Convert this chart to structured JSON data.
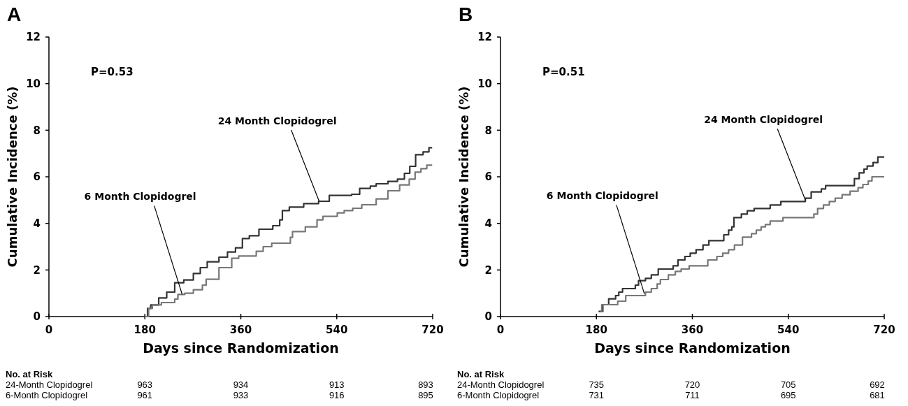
{
  "chart_data": [
    {
      "type": "step",
      "title": "A",
      "xlabel": "Days since Randomization",
      "ylabel": "Cumulative Incidence (%)",
      "xlim": [
        0,
        720
      ],
      "xticks": [
        0,
        180,
        360,
        540,
        720
      ],
      "ylim": [
        0,
        12
      ],
      "yticks": [
        0,
        2,
        4,
        6,
        8,
        10,
        12
      ],
      "grid": false,
      "marker": "none",
      "line_style": "solid",
      "series": [
        {
          "color": "#333333",
          "x": [
            180,
            185,
            191,
            206,
            221,
            236,
            253,
            271,
            284,
            297,
            319,
            335,
            350,
            363,
            376,
            394,
            420,
            433,
            438,
            451,
            478,
            506,
            526,
            568,
            583,
            603,
            614,
            636,
            654,
            667,
            677,
            688,
            702,
            713,
            719
          ],
          "values": [
            0,
            0.35,
            0.5,
            0.8,
            1.05,
            1.45,
            1.57,
            1.85,
            2.1,
            2.35,
            2.55,
            2.77,
            2.95,
            3.35,
            3.47,
            3.75,
            3.9,
            4.15,
            4.55,
            4.7,
            4.85,
            4.95,
            5.2,
            5.25,
            5.5,
            5.6,
            5.7,
            5.8,
            5.9,
            6.15,
            6.45,
            6.95,
            7.07,
            7.25,
            7.25
          ]
        },
        {
          "color": "#777777",
          "x": [
            180,
            187,
            194,
            211,
            236,
            242,
            255,
            271,
            288,
            295,
            319,
            343,
            356,
            389,
            402,
            418,
            453,
            457,
            481,
            503,
            514,
            541,
            554,
            570,
            587,
            614,
            636,
            658,
            676,
            687,
            698,
            709,
            719
          ],
          "values": [
            0,
            0.35,
            0.5,
            0.6,
            0.75,
            0.95,
            1.0,
            1.15,
            1.35,
            1.6,
            2.1,
            2.5,
            2.6,
            2.8,
            3.0,
            3.15,
            3.4,
            3.65,
            3.85,
            4.15,
            4.3,
            4.45,
            4.55,
            4.65,
            4.8,
            5.05,
            5.4,
            5.65,
            5.9,
            6.2,
            6.35,
            6.5,
            6.5
          ]
        }
      ],
      "annotations": [
        "P=0.53",
        {
          "text": "24 Month Clopidogrel",
          "x": 507,
          "y": 4.95
        },
        {
          "text": "6 Month Clopidogrel",
          "x": 250,
          "y": 0.95
        },
        "No. at Risk",
        "24-Month Clopidogrel 963 934 913 893",
        "6-Month Clopidogrel 961 933 916 895"
      ]
    },
    {
      "type": "step",
      "title": "B",
      "xlabel": "Days since Randomization",
      "ylabel": "Cumulative Incidence (%)",
      "xlim": [
        0,
        720
      ],
      "xticks": [
        0,
        180,
        360,
        540,
        720
      ],
      "ylim": [
        0,
        12
      ],
      "yticks": [
        0,
        2,
        4,
        6,
        8,
        10,
        12
      ],
      "grid": false,
      "marker": "none",
      "line_style": "solid",
      "series": [
        {
          "color": "#333333",
          "x": [
            184,
            192,
            203,
            216,
            222,
            229,
            253,
            259,
            272,
            283,
            296,
            324,
            333,
            346,
            356,
            367,
            380,
            391,
            419,
            428,
            434,
            438,
            452,
            463,
            476,
            506,
            526,
            572,
            583,
            602,
            610,
            664,
            673,
            682,
            688,
            699,
            708,
            720
          ],
          "values": [
            0.22,
            0.51,
            0.76,
            0.9,
            1.05,
            1.2,
            1.35,
            1.54,
            1.64,
            1.79,
            2.04,
            2.18,
            2.43,
            2.58,
            2.72,
            2.87,
            3.07,
            3.26,
            3.51,
            3.71,
            3.85,
            4.25,
            4.4,
            4.54,
            4.64,
            4.79,
            4.94,
            5.08,
            5.35,
            5.48,
            5.62,
            5.92,
            6.17,
            6.33,
            6.46,
            6.61,
            6.85,
            6.85
          ]
        },
        {
          "color": "#777777",
          "x": [
            187,
            190,
            220,
            235,
            272,
            283,
            294,
            300,
            315,
            328,
            339,
            354,
            389,
            406,
            417,
            428,
            439,
            454,
            471,
            480,
            489,
            497,
            506,
            530,
            588,
            595,
            606,
            617,
            628,
            641,
            656,
            671,
            680,
            690,
            697,
            720
          ],
          "values": [
            0.22,
            0.51,
            0.66,
            0.9,
            1.05,
            1.2,
            1.4,
            1.59,
            1.79,
            1.94,
            2.04,
            2.18,
            2.43,
            2.58,
            2.72,
            2.87,
            3.07,
            3.41,
            3.56,
            3.71,
            3.85,
            3.95,
            4.1,
            4.25,
            4.4,
            4.64,
            4.79,
            4.94,
            5.08,
            5.23,
            5.38,
            5.53,
            5.67,
            5.82,
            6.0,
            6.0
          ]
        }
      ],
      "annotations": [
        "P=0.51",
        {
          "text": "24 Month Clopidogrel",
          "x": 572,
          "y": 5.0
        },
        {
          "text": "6 Month Clopidogrel",
          "x": 270,
          "y": 0.98
        },
        "No. at Risk",
        "24-Month Clopidogrel 735 720 705 692",
        "6-Month Clopidogrel 731 711 695 681"
      ]
    }
  ]
}
